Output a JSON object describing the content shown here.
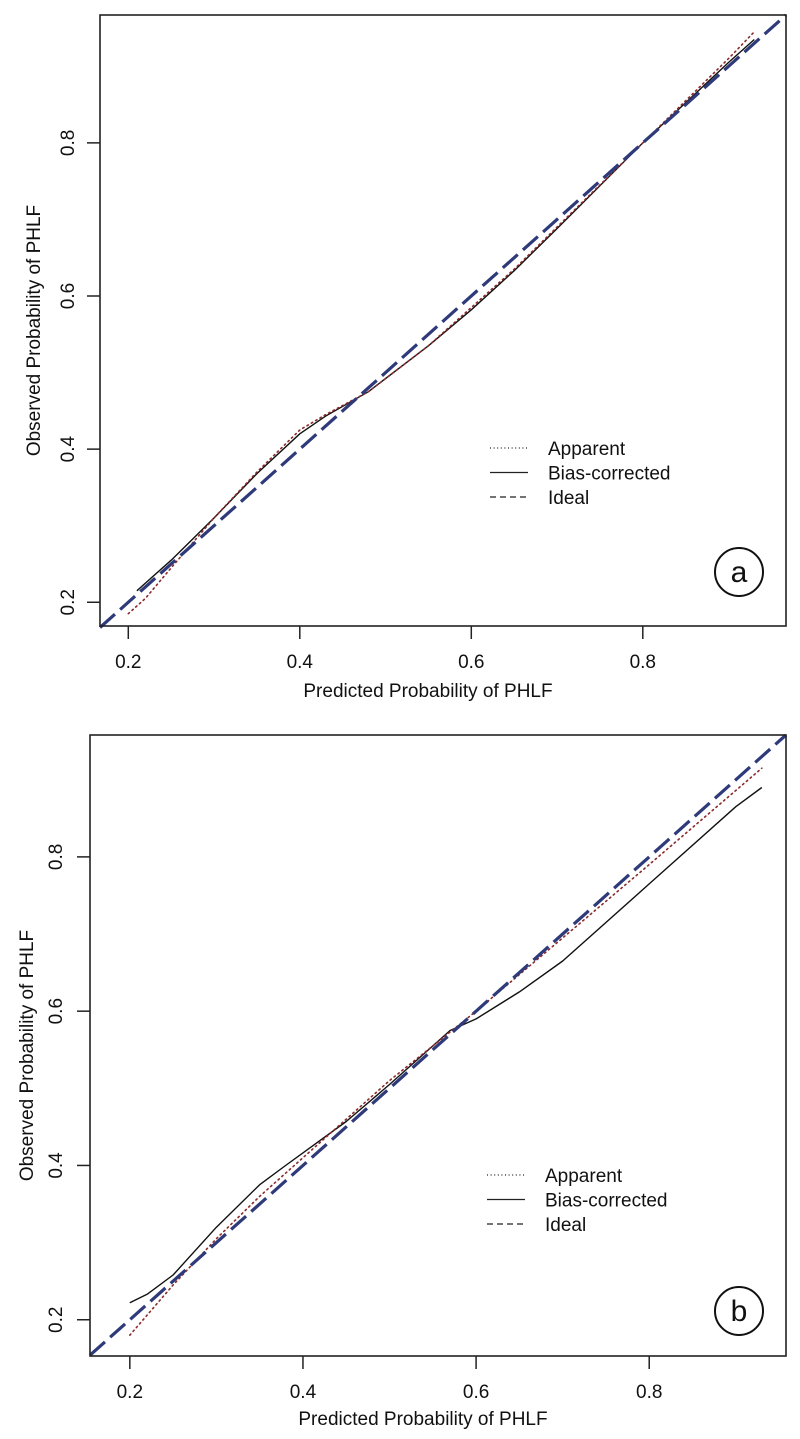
{
  "chart_data": [
    {
      "type": "line",
      "panel_label": "a",
      "xlabel": "Predicted Probability of PHLF",
      "ylabel": "Observed Probability of PHLF",
      "xlim": [
        0.167,
        0.967
      ],
      "ylim": [
        0.169,
        0.967
      ],
      "x_ticks": [
        0.2,
        0.4,
        0.6,
        0.8
      ],
      "x_tick_labels": [
        "0.2",
        "0.4",
        "0.6",
        "0.8"
      ],
      "y_ticks": [
        0.2,
        0.4,
        0.6,
        0.8
      ],
      "y_tick_labels": [
        "0.2",
        "0.4",
        "0.6",
        "0.8"
      ],
      "grid": false,
      "legend_position": "center-right",
      "legend": [
        "Apparent",
        "Bias-corrected",
        "Ideal"
      ],
      "series": [
        {
          "name": "Apparent",
          "style": "dotted",
          "color": "#8b2a2a",
          "x": [
            0.2,
            0.22,
            0.25,
            0.3,
            0.35,
            0.4,
            0.43,
            0.48,
            0.55,
            0.6,
            0.65,
            0.7,
            0.8,
            0.9,
            0.93
          ],
          "y": [
            0.185,
            0.205,
            0.245,
            0.31,
            0.37,
            0.425,
            0.445,
            0.475,
            0.535,
            0.585,
            0.635,
            0.69,
            0.8,
            0.91,
            0.945
          ]
        },
        {
          "name": "Bias-corrected",
          "style": "solid",
          "color": "#111111",
          "x": [
            0.21,
            0.22,
            0.25,
            0.3,
            0.35,
            0.4,
            0.43,
            0.48,
            0.55,
            0.6,
            0.65,
            0.7,
            0.8,
            0.9,
            0.93
          ],
          "y": [
            0.215,
            0.225,
            0.255,
            0.31,
            0.368,
            0.42,
            0.443,
            0.475,
            0.535,
            0.582,
            0.633,
            0.688,
            0.8,
            0.905,
            0.935
          ]
        },
        {
          "name": "Ideal",
          "style": "dashed",
          "color": "#2e3a7a",
          "x": [
            0.167,
            0.967
          ],
          "y": [
            0.167,
            0.967
          ]
        }
      ]
    },
    {
      "type": "line",
      "panel_label": "b",
      "xlabel": "Predicted Probability of PHLF",
      "ylabel": "Observed Probability of PHLF",
      "xlim": [
        0.154,
        0.958
      ],
      "ylim": [
        0.153,
        0.958
      ],
      "x_ticks": [
        0.2,
        0.4,
        0.6,
        0.8
      ],
      "x_tick_labels": [
        "0.2",
        "0.4",
        "0.6",
        "0.8"
      ],
      "y_ticks": [
        0.2,
        0.4,
        0.6,
        0.8
      ],
      "y_tick_labels": [
        "0.2",
        "0.4",
        "0.6",
        "0.8"
      ],
      "grid": false,
      "legend_position": "center-right",
      "legend": [
        "Apparent",
        "Bias-corrected",
        "Ideal"
      ],
      "series": [
        {
          "name": "Apparent",
          "style": "dotted",
          "color": "#8b2a2a",
          "x": [
            0.2,
            0.25,
            0.3,
            0.35,
            0.4,
            0.45,
            0.5,
            0.55,
            0.6,
            0.7,
            0.8,
            0.93
          ],
          "y": [
            0.18,
            0.245,
            0.305,
            0.36,
            0.41,
            0.46,
            0.51,
            0.555,
            0.6,
            0.695,
            0.79,
            0.915
          ]
        },
        {
          "name": "Bias-corrected",
          "style": "solid",
          "color": "#111111",
          "x": [
            0.2,
            0.22,
            0.25,
            0.3,
            0.35,
            0.38,
            0.45,
            0.5,
            0.57,
            0.6,
            0.65,
            0.7,
            0.8,
            0.9,
            0.93
          ],
          "y": [
            0.222,
            0.233,
            0.258,
            0.32,
            0.375,
            0.4,
            0.457,
            0.505,
            0.575,
            0.59,
            0.625,
            0.665,
            0.765,
            0.865,
            0.89
          ]
        },
        {
          "name": "Ideal",
          "style": "dashed",
          "color": "#2e3a7a",
          "x": [
            0.154,
            0.958
          ],
          "y": [
            0.154,
            0.958
          ]
        }
      ]
    }
  ]
}
